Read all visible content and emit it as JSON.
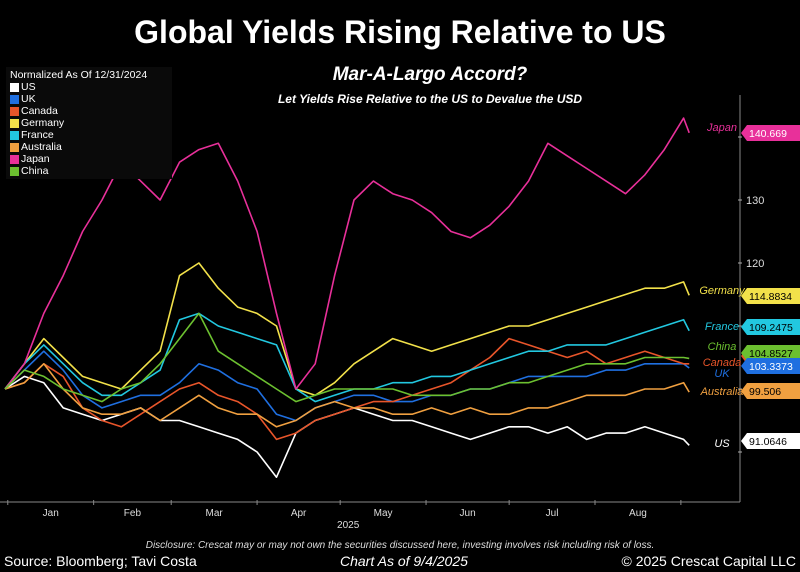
{
  "chart_data": {
    "type": "line",
    "title": "Global Yields Rising Relative to US",
    "subtitle": "Mar-A-Largo Accord?",
    "subsubtitle": "Let Yields Rise Relative to the US to Devalue the USD",
    "legend_title": "Normalized As Of 12/31/2024",
    "legend_placement": "top-left",
    "xlabel": "2025",
    "x_tick_labels": [
      "Jan",
      "Feb",
      "Mar",
      "Apr",
      "May",
      "Jun",
      "Jul",
      "Aug"
    ],
    "y_ticks": [
      90,
      100,
      110,
      120,
      130,
      140
    ],
    "y_tick_labels_visible": [
      "130",
      "120"
    ],
    "ylim": [
      84,
      147
    ],
    "y_axis_side": "right",
    "grid": false,
    "dates": [
      "2024-12-31",
      "2025-01-07",
      "2025-01-14",
      "2025-01-21",
      "2025-01-28",
      "2025-02-04",
      "2025-02-11",
      "2025-02-18",
      "2025-02-25",
      "2025-03-04",
      "2025-03-11",
      "2025-03-18",
      "2025-03-25",
      "2025-04-01",
      "2025-04-08",
      "2025-04-15",
      "2025-04-22",
      "2025-04-29",
      "2025-05-06",
      "2025-05-13",
      "2025-05-20",
      "2025-05-27",
      "2025-06-03",
      "2025-06-10",
      "2025-06-17",
      "2025-06-24",
      "2025-07-01",
      "2025-07-08",
      "2025-07-15",
      "2025-07-22",
      "2025-07-29",
      "2025-08-05",
      "2025-08-12",
      "2025-08-19",
      "2025-08-26",
      "2025-09-02",
      "2025-09-04"
    ],
    "series": [
      {
        "name": "US",
        "color": "#ffffff",
        "last_label": "91.0646",
        "label_color": "#ffffff",
        "text_color": "#000000",
        "values": [
          100,
          102,
          101,
          97,
          96,
          95,
          96,
          97,
          95,
          95,
          94,
          93,
          92,
          90,
          86,
          93,
          95,
          96,
          97,
          96,
          95,
          95,
          94,
          93,
          92,
          93,
          94,
          94,
          93,
          94,
          92,
          93,
          93,
          94,
          93,
          92,
          91.06
        ]
      },
      {
        "name": "UK",
        "color": "#1f6fe0",
        "last_label": "103.3373",
        "label_color": "#1f6fe0",
        "text_color": "#ffffff",
        "values": [
          100,
          103,
          106,
          103,
          99,
          97,
          98,
          99,
          99,
          101,
          104,
          103,
          101,
          100,
          96,
          95,
          97,
          98,
          99,
          99,
          98,
          98,
          99,
          99,
          100,
          100,
          101,
          102,
          102,
          102,
          102,
          103,
          103,
          104,
          104,
          104,
          103.34
        ]
      },
      {
        "name": "Canada",
        "color": "#e8552a",
        "last_label": "",
        "label_color": "#e8552a",
        "text_color": "#ffffff",
        "values": [
          100,
          101,
          104,
          102,
          97,
          95,
          94,
          96,
          98,
          100,
          101,
          99,
          98,
          96,
          92,
          93,
          95,
          96,
          97,
          98,
          98,
          99,
          100,
          101,
          103,
          105,
          108,
          107,
          106,
          105,
          106,
          104,
          105,
          106,
          105,
          104,
          104
        ]
      },
      {
        "name": "Germany",
        "color": "#f2e14a",
        "last_label": "114.8834",
        "label_color": "#f2e14a",
        "text_color": "#000000",
        "values": [
          100,
          104,
          108,
          105,
          102,
          101,
          100,
          103,
          106,
          118,
          120,
          116,
          113,
          112,
          110,
          100,
          99,
          101,
          104,
          106,
          108,
          107,
          106,
          107,
          108,
          109,
          110,
          110,
          111,
          112,
          113,
          114,
          115,
          116,
          116,
          117,
          114.88
        ]
      },
      {
        "name": "France",
        "color": "#22c8e0",
        "last_label": "109.2475",
        "label_color": "#22c8e0",
        "text_color": "#000000",
        "values": [
          100,
          104,
          107,
          104,
          101,
          99,
          99,
          101,
          103,
          111,
          112,
          110,
          109,
          108,
          107,
          100,
          98,
          99,
          100,
          100,
          101,
          101,
          102,
          102,
          103,
          104,
          105,
          106,
          106,
          107,
          107,
          107,
          108,
          109,
          110,
          111,
          109.25
        ]
      },
      {
        "name": "Australia",
        "color": "#f0a040",
        "last_label": "99.506",
        "label_color": "#f0a040",
        "text_color": "#000000",
        "values": [
          100,
          101,
          104,
          100,
          97,
          96,
          96,
          97,
          95,
          97,
          99,
          97,
          96,
          96,
          94,
          95,
          97,
          98,
          97,
          97,
          96,
          96,
          97,
          96,
          97,
          96,
          96,
          97,
          97,
          98,
          99,
          99,
          99,
          100,
          100,
          101,
          99.51
        ]
      },
      {
        "name": "Japan",
        "color": "#e8309a",
        "last_label": "140.669",
        "label_color": "#e8309a",
        "text_color": "#ffffff",
        "values": [
          100,
          104,
          112,
          118,
          125,
          130,
          136,
          133,
          130,
          136,
          138,
          139,
          133,
          125,
          112,
          100,
          104,
          118,
          130,
          133,
          131,
          130,
          128,
          125,
          124,
          126,
          129,
          133,
          139,
          137,
          135,
          133,
          131,
          134,
          138,
          143,
          140.67
        ]
      },
      {
        "name": "China",
        "color": "#6cc030",
        "last_label": "104.8527",
        "label_color": "#6cc030",
        "text_color": "#000000",
        "values": [
          100,
          103,
          102,
          100,
          99,
          98,
          100,
          101,
          104,
          108,
          112,
          106,
          104,
          102,
          100,
          98,
          99,
          100,
          100,
          100,
          100,
          99,
          99,
          99,
          100,
          100,
          101,
          101,
          102,
          103,
          104,
          104,
          104,
          105,
          105,
          105,
          104.85
        ]
      }
    ]
  },
  "footer": {
    "disclosure": "Disclosure: Crescat may or may not own the securities discussed here, investing involves risk including risk of loss.",
    "source": "Source: Bloomberg; Tavi Costa",
    "as_of": "Chart As of 9/4/2025",
    "copyright": "© 2025 Crescat Capital LLC"
  }
}
